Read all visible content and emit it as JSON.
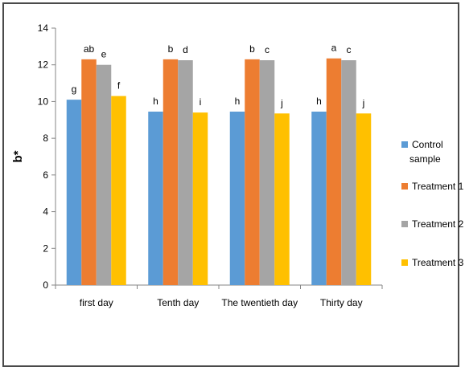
{
  "chart_data": {
    "type": "bar",
    "title": "",
    "xlabel": "",
    "ylabel": "b*",
    "ylim": [
      0,
      14
    ],
    "yticks": [
      0,
      2,
      4,
      6,
      8,
      10,
      12,
      14
    ],
    "grid": false,
    "legend_position": "right",
    "categories": [
      "first day",
      "Tenth day",
      "The twentieth day",
      "Thirty day"
    ],
    "series": [
      {
        "name": "Control sample",
        "legend_lines": [
          "Control",
          "sample"
        ],
        "color": "#5B9BD5",
        "values": [
          10.1,
          9.45,
          9.45,
          9.45
        ],
        "labels": [
          "g",
          "h",
          "h",
          "h"
        ]
      },
      {
        "name": "Treatment 1",
        "legend_lines": [
          "Treatment 1"
        ],
        "color": "#ED7D31",
        "values": [
          12.3,
          12.3,
          12.3,
          12.35
        ],
        "labels": [
          "ab",
          "b",
          "b",
          "a"
        ]
      },
      {
        "name": "Treatment 2",
        "legend_lines": [
          "Treatment 2"
        ],
        "color": "#A5A5A5",
        "values": [
          12.0,
          12.25,
          12.25,
          12.25
        ],
        "labels": [
          "e",
          "d",
          "c",
          "c"
        ]
      },
      {
        "name": "Treatment 3",
        "legend_lines": [
          "Treatment 3"
        ],
        "color": "#FFC000",
        "values": [
          10.3,
          9.4,
          9.35,
          9.35
        ],
        "labels": [
          "f",
          "i",
          "j",
          "j"
        ]
      }
    ]
  }
}
